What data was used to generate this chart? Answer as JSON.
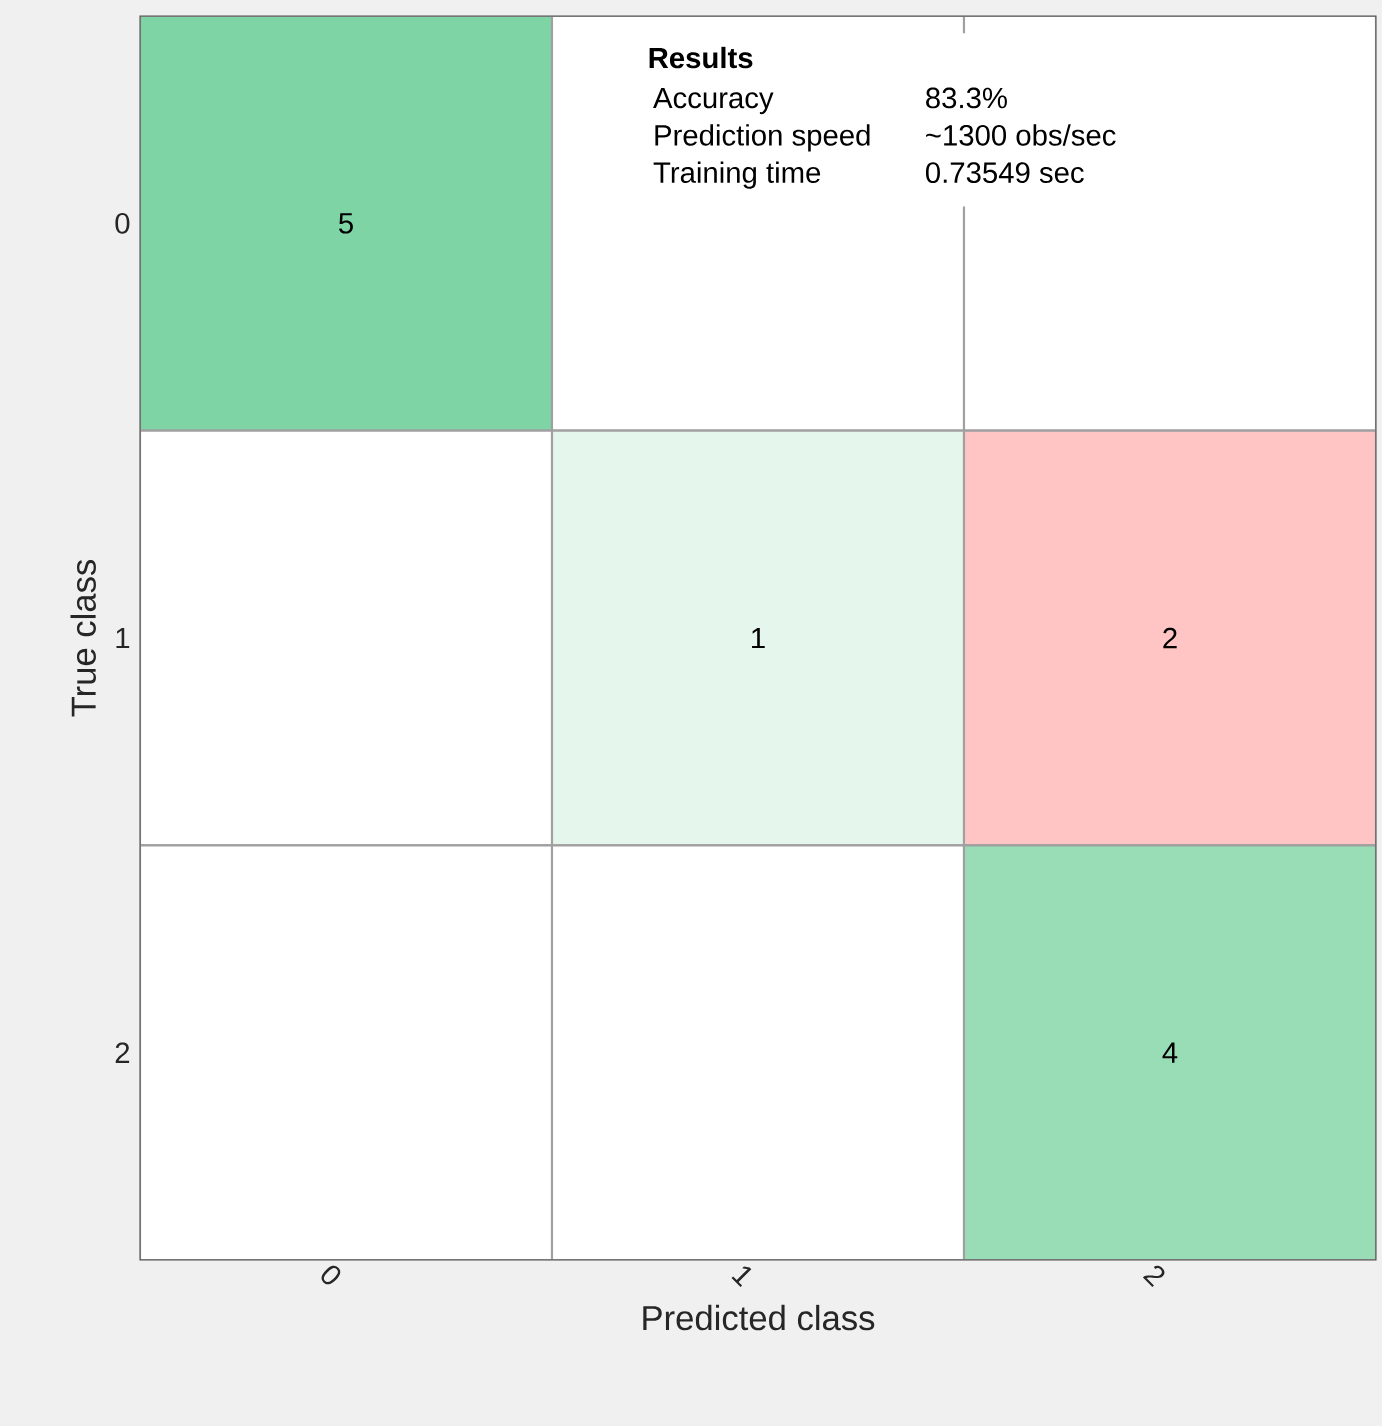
{
  "chart_data": {
    "type": "heatmap",
    "xlabel": "Predicted class",
    "ylabel": "True class",
    "categories": [
      "0",
      "1",
      "2"
    ],
    "y_categories": [
      "0",
      "1",
      "2"
    ],
    "cells": [
      [
        5,
        null,
        null
      ],
      [
        null,
        1,
        2
      ],
      [
        null,
        null,
        4
      ]
    ],
    "data_labels": true,
    "annotations": [
      "Results",
      "Accuracy",
      "83.3%",
      "Prediction speed",
      "~1300 obs/sec",
      "Training time",
      "0.73549 sec"
    ]
  }
}
